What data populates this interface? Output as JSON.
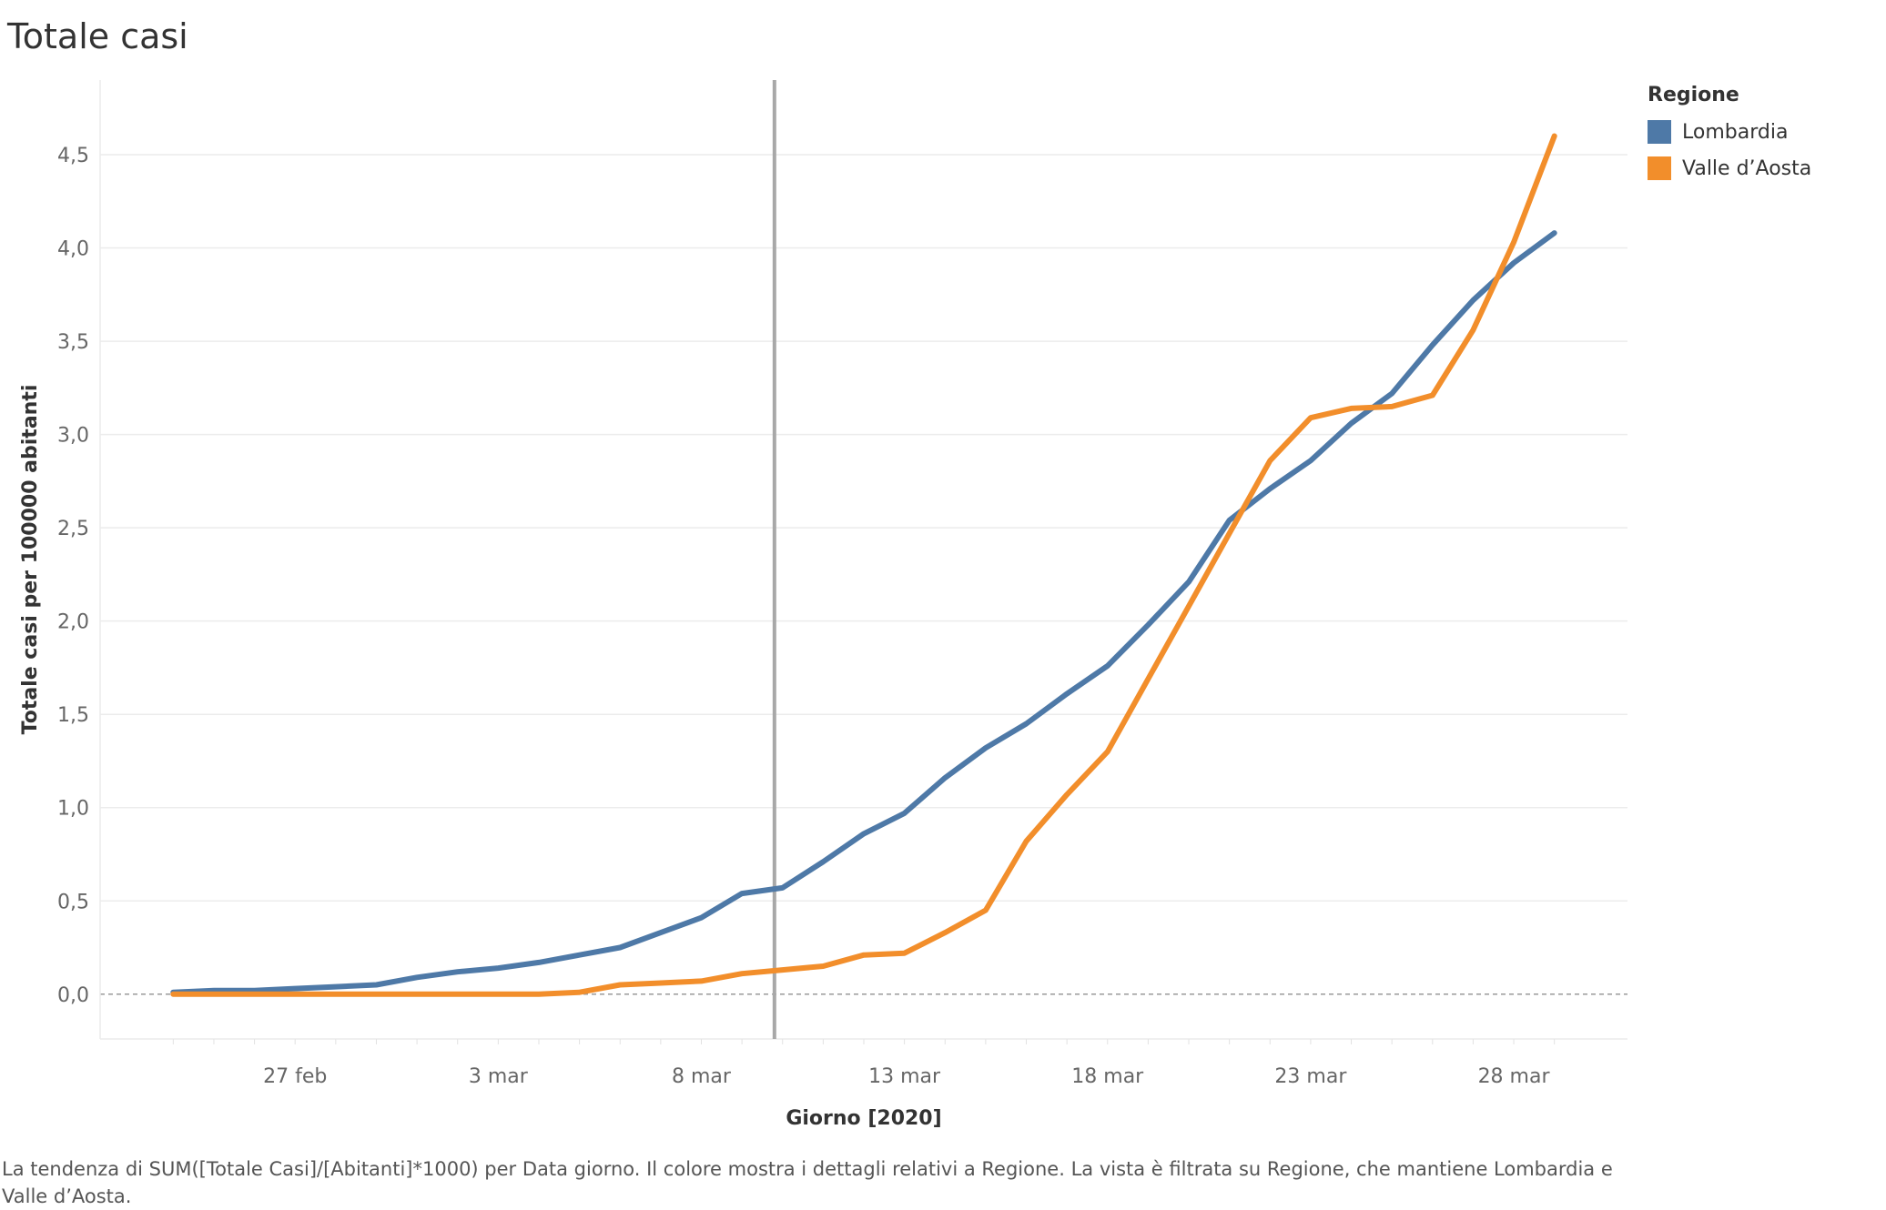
{
  "page": {
    "title": "Totale casi",
    "caption": "La tendenza di SUM([Totale Casi]/[Abitanti]*1000) per Data giorno.  Il colore mostra i dettagli relativi a Regione. La vista è filtrata su Regione, che mantiene Lombardia e Valle d’Aosta."
  },
  "legend": {
    "title": "Regione",
    "items": [
      {
        "label": "Lombardia",
        "color": "#4e79a7"
      },
      {
        "label": "Valle d’Aosta",
        "color": "#f28e2b"
      }
    ]
  },
  "chart_data": {
    "type": "line",
    "title": "Totale casi",
    "xlabel": "Giorno [2020]",
    "ylabel": "Totale casi per 100000 abitanti",
    "x_start": "2020-02-24",
    "x_tick_labels": [
      "27 feb",
      "3 mar",
      "8 mar",
      "13 mar",
      "18 mar",
      "23 mar",
      "28 mar"
    ],
    "x_tick_days": [
      3,
      8,
      13,
      18,
      23,
      28,
      33
    ],
    "x_range": [
      -1.8,
      35.8
    ],
    "ylim": [
      -0.24,
      4.9
    ],
    "y_ticks": [
      0.0,
      0.5,
      1.0,
      1.5,
      2.0,
      2.5,
      3.0,
      3.5,
      4.0,
      4.5
    ],
    "y_tick_labels": [
      "0,0",
      "0,5",
      "1,0",
      "1,5",
      "2,0",
      "2,5",
      "3,0",
      "3,5",
      "4,0",
      "4,5"
    ],
    "reference_line_day": 14.8,
    "grid": true,
    "legend_position": "top-right",
    "series": [
      {
        "name": "Lombardia",
        "color": "#4e79a7",
        "values": [
          0.01,
          0.02,
          0.02,
          0.03,
          0.04,
          0.05,
          0.09,
          0.12,
          0.14,
          0.17,
          0.21,
          0.25,
          0.33,
          0.41,
          0.54,
          0.57,
          0.71,
          0.86,
          0.97,
          1.16,
          1.32,
          1.45,
          1.61,
          1.76,
          1.98,
          2.21,
          2.54,
          2.71,
          2.86,
          3.06,
          3.22,
          3.48,
          3.72,
          3.92,
          4.08
        ]
      },
      {
        "name": "Valle d’Aosta",
        "color": "#f28e2b",
        "values": [
          0.0,
          0.0,
          0.0,
          0.0,
          0.0,
          0.0,
          0.0,
          0.0,
          0.0,
          0.0,
          0.01,
          0.05,
          0.06,
          0.07,
          0.11,
          0.13,
          0.15,
          0.21,
          0.22,
          0.33,
          0.45,
          0.82,
          1.07,
          1.3,
          1.69,
          2.08,
          2.47,
          2.86,
          3.09,
          3.14,
          3.15,
          3.21,
          3.56,
          4.03,
          4.6
        ]
      }
    ]
  }
}
